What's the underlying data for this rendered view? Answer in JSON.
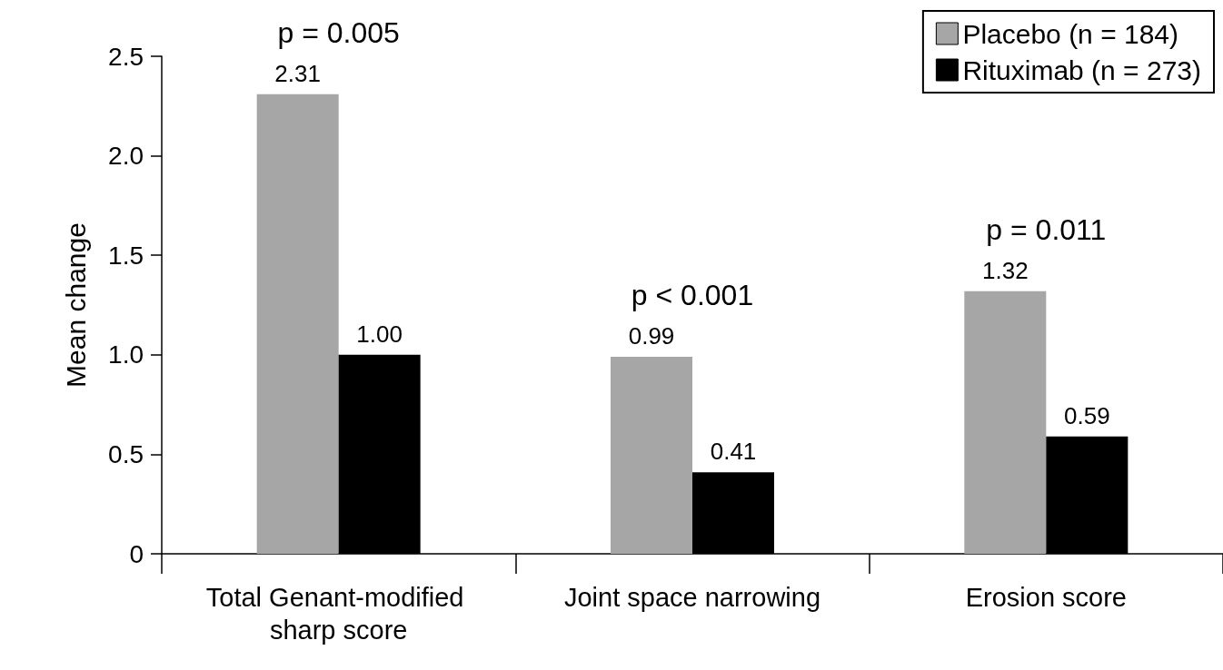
{
  "chart_data": {
    "type": "bar",
    "ylabel": "Mean change",
    "categories": [
      "Total Genant-modified sharp score",
      "Joint space narrowing",
      "Erosion score"
    ],
    "series": [
      {
        "name": "Placebo (n = 184)",
        "color": "#a6a6a6",
        "values": [
          2.31,
          0.99,
          1.32
        ],
        "value_labels": [
          "2.31",
          "0.99",
          "1.32"
        ]
      },
      {
        "name": "Rituximab (n = 273)",
        "color": "#000000",
        "values": [
          1.0,
          0.41,
          0.59
        ],
        "value_labels": [
          "1.00",
          "0.41",
          "0.59"
        ]
      }
    ],
    "ylim": [
      0,
      2.5
    ],
    "yticks": [
      0,
      {
        "value": 0.5,
        "label": "0.5"
      },
      {
        "value": 1,
        "label": "1.0"
      },
      {
        "value": 1.5,
        "label": "1.5"
      },
      {
        "value": 2,
        "label": "2.0"
      },
      {
        "value": 2.5,
        "label": "2.5"
      }
    ],
    "annotations": [
      "p = 0.005",
      "p < 0.001",
      "p = 0.011"
    ],
    "legend": "top right",
    "grid": false
  }
}
